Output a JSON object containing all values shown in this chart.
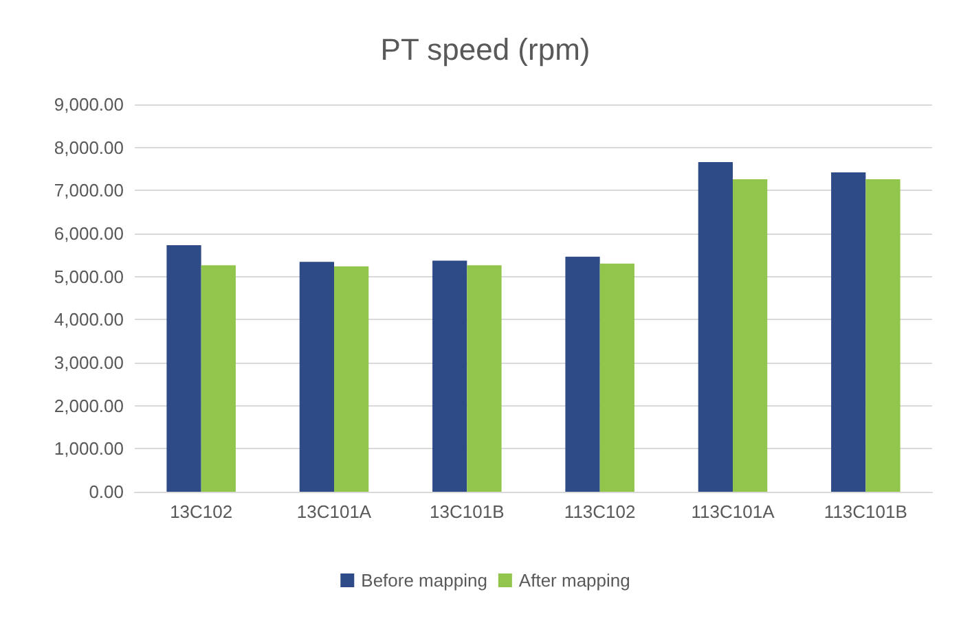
{
  "chart_data": {
    "type": "bar",
    "title": "PT speed (rpm)",
    "categories": [
      "13C102",
      "13C101A",
      "13C101B",
      "113C102",
      "113C101A",
      "113C101B"
    ],
    "series": [
      {
        "name": "Before mapping",
        "color": "#2e4b87",
        "values": [
          5730,
          5340,
          5370,
          5460,
          7660,
          7420
        ]
      },
      {
        "name": "After mapping",
        "color": "#92c54b",
        "values": [
          5260,
          5240,
          5260,
          5300,
          7260,
          7260
        ]
      }
    ],
    "ylim": [
      0,
      9000
    ],
    "yticks": [
      {
        "value": 0,
        "label": "0.00"
      },
      {
        "value": 1000,
        "label": "1,000.00"
      },
      {
        "value": 2000,
        "label": "2,000.00"
      },
      {
        "value": 3000,
        "label": "3,000.00"
      },
      {
        "value": 4000,
        "label": "4,000.00"
      },
      {
        "value": 5000,
        "label": "5,000.00"
      },
      {
        "value": 6000,
        "label": "6,000.00"
      },
      {
        "value": 7000,
        "label": "7,000.00"
      },
      {
        "value": 8000,
        "label": "8,000.00"
      },
      {
        "value": 9000,
        "label": "9,000.00"
      }
    ],
    "grid": "y",
    "legend": "bottom"
  }
}
